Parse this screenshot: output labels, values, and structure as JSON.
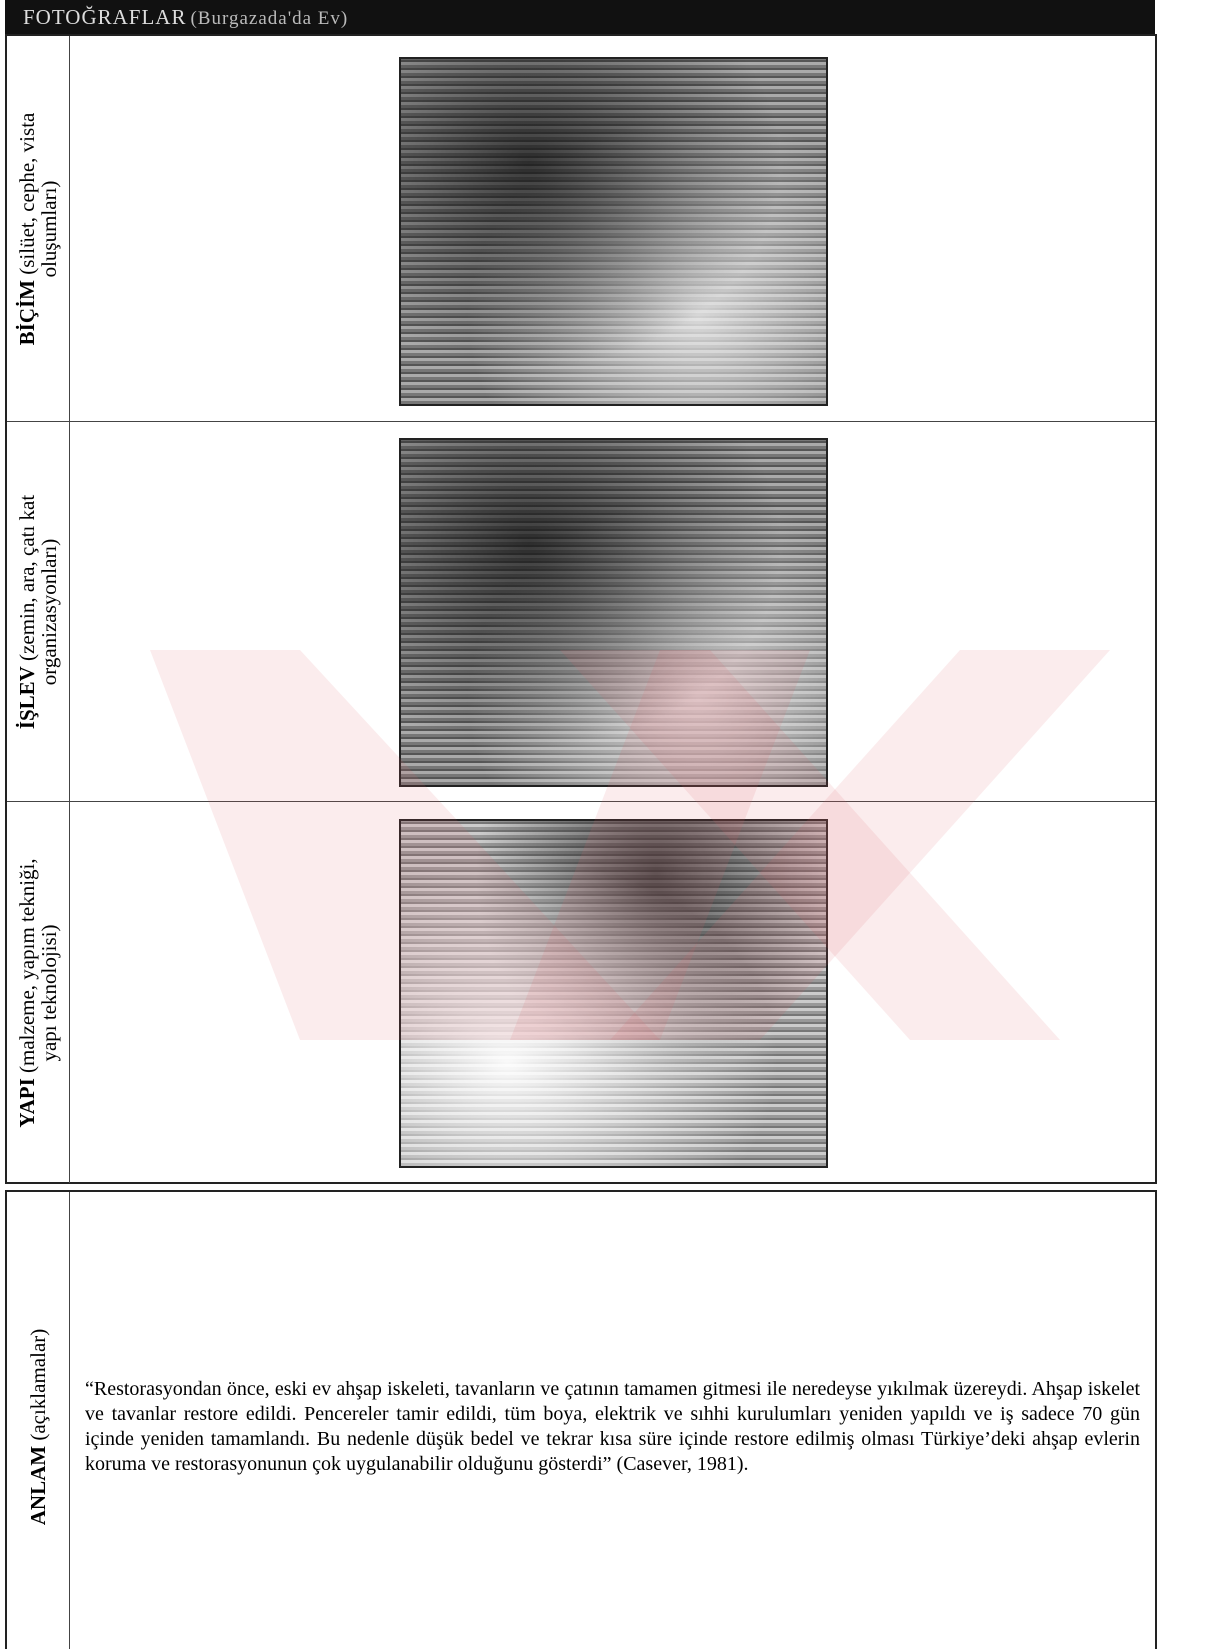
{
  "header": {
    "title": "FOTOĞRAFLAR",
    "subtitle": "(Burgazada'da Ev)"
  },
  "table": {
    "rows": [
      {
        "label_bold": "BİÇİM",
        "label_rest_1": "(silüet, cephe, vista",
        "label_rest_2": "oluşumları)"
      },
      {
        "label_bold": "İŞLEV",
        "label_rest_1": "(zemin, ara, çatı kat",
        "label_rest_2": "organizasyonları)"
      },
      {
        "label_bold": "YAPI",
        "label_rest_1": "(malzeme, yapım tekniği,",
        "label_rest_2": "yapı teknolojisi)"
      }
    ]
  },
  "anlam": {
    "label_bold": "ANLAM",
    "label_rest": "(açıklamalar)",
    "text": "“Restorasyondan önce, eski ev ahşap iskeleti, tavanların ve çatının tamamen gitmesi ile neredeyse yıkılmak üzereydi. Ahşap iskelet ve tavanlar restore edildi. Pencereler tamir edildi, tüm boya, elektrik ve sıhhi kurulumları yeniden yapıldı ve iş sadece 70 gün içinde yeniden tamamlandı. Bu nedenle düşük bedel ve tekrar kısa süre içinde restore edilmiş olması Türkiye’deki ahşap evlerin koruma ve restorasyonunun çok uygulanabilir olduğunu gösterdi” (Casever, 1981)."
  }
}
